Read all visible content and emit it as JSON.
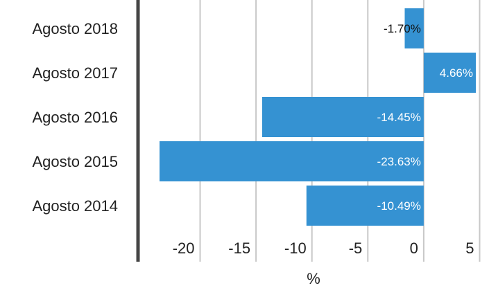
{
  "chart_data": {
    "type": "bar",
    "orientation": "horizontal",
    "categories": [
      "Agosto 2018",
      "Agosto 2017",
      "Agosto 2016",
      "Agosto 2015",
      "Agosto 2014"
    ],
    "values": [
      -1.7,
      4.66,
      -14.45,
      -23.63,
      -10.49
    ],
    "data_labels": [
      "-1.70%",
      "4.66%",
      "-14.45%",
      "-23.63%",
      "-10.49%"
    ],
    "xlabel": "%",
    "ylabel": "",
    "xlim": [
      -23.63,
      4.66
    ],
    "xticks": [
      -20,
      -15,
      -10,
      -5,
      0,
      5
    ],
    "xtick_labels": [
      "-20",
      "-15",
      "-10",
      "-5",
      "0",
      "5"
    ],
    "grid": true,
    "bar_color": "#3592d2",
    "label_color_inside": "#ffffff",
    "label_color_outside": "#111111",
    "gridline_color": "#c8c8c8",
    "axis_line_color": "#444444"
  }
}
